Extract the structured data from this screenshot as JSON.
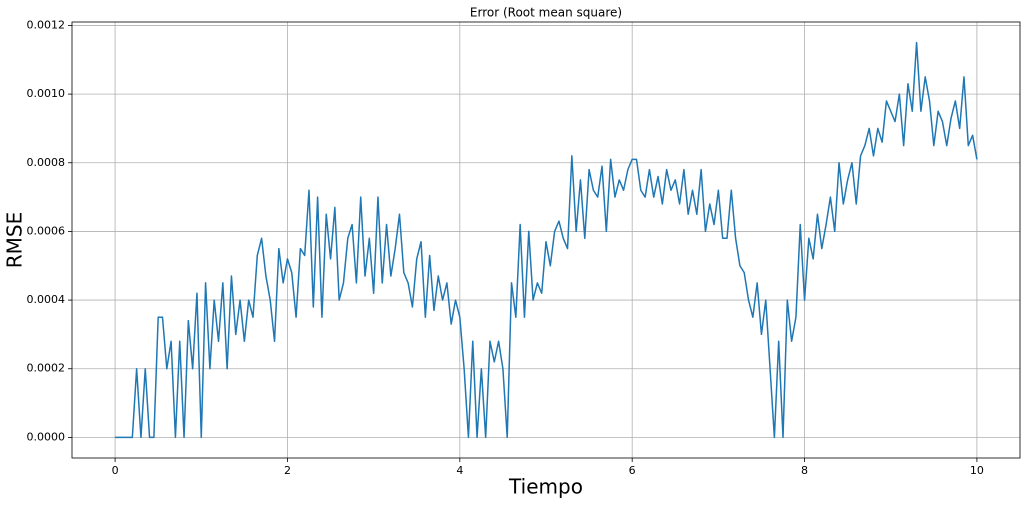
{
  "chart_data": {
    "type": "line",
    "title": "Error (Root mean square)",
    "x_label": "Tiempo",
    "y_label": "RMSE",
    "x": [
      0,
      0.05,
      0.1,
      0.15,
      0.2,
      0.25,
      0.3,
      0.35,
      0.4,
      0.45,
      0.5,
      0.55,
      0.6,
      0.65,
      0.7,
      0.75,
      0.8,
      0.85,
      0.9,
      0.95,
      1,
      1.05,
      1.1,
      1.15,
      1.2,
      1.25,
      1.3,
      1.35,
      1.4,
      1.45,
      1.5,
      1.55,
      1.6,
      1.65,
      1.7,
      1.75,
      1.8,
      1.85,
      1.9,
      1.95,
      2,
      2.05,
      2.1,
      2.15,
      2.2,
      2.25,
      2.3,
      2.35,
      2.4,
      2.45,
      2.5,
      2.55,
      2.6,
      2.65,
      2.7,
      2.75,
      2.8,
      2.85,
      2.9,
      2.95,
      3,
      3.05,
      3.1,
      3.15,
      3.2,
      3.25,
      3.3,
      3.35,
      3.4,
      3.45,
      3.5,
      3.55,
      3.6,
      3.65,
      3.7,
      3.75,
      3.8,
      3.85,
      3.9,
      3.95,
      4,
      4.05,
      4.1,
      4.15,
      4.2,
      4.25,
      4.3,
      4.35,
      4.4,
      4.45,
      4.5,
      4.55,
      4.6,
      4.65,
      4.7,
      4.75,
      4.8,
      4.85,
      4.9,
      4.95,
      5,
      5.05,
      5.1,
      5.15,
      5.2,
      5.25,
      5.3,
      5.35,
      5.4,
      5.45,
      5.5,
      5.55,
      5.6,
      5.65,
      5.7,
      5.75,
      5.8,
      5.85,
      5.9,
      5.95,
      6,
      6.05,
      6.1,
      6.15,
      6.2,
      6.25,
      6.3,
      6.35,
      6.4,
      6.45,
      6.5,
      6.55,
      6.6,
      6.65,
      6.7,
      6.75,
      6.8,
      6.85,
      6.9,
      6.95,
      7,
      7.05,
      7.1,
      7.15,
      7.2,
      7.25,
      7.3,
      7.35,
      7.4,
      7.45,
      7.5,
      7.55,
      7.6,
      7.65,
      7.7,
      7.75,
      7.8,
      7.85,
      7.9,
      7.95,
      8,
      8.05,
      8.1,
      8.15,
      8.2,
      8.25,
      8.3,
      8.35,
      8.4,
      8.45,
      8.5,
      8.55,
      8.6,
      8.65,
      8.7,
      8.75,
      8.8,
      8.85,
      8.9,
      8.95,
      9,
      9.05,
      9.1,
      9.15,
      9.2,
      9.25,
      9.3,
      9.35,
      9.4,
      9.45,
      9.5,
      9.55,
      9.6,
      9.65,
      9.7,
      9.75,
      9.8,
      9.85,
      9.9,
      9.95,
      10
    ],
    "series": [
      {
        "color": "#1f77b4",
        "values": [
          0,
          0,
          0,
          0,
          0,
          0.0002,
          0,
          0.0002,
          0,
          0,
          0.00035,
          0.00035,
          0.0002,
          0.00028,
          0,
          0.00028,
          0,
          0.00034,
          0.0002,
          0.00042,
          0,
          0.00045,
          0.0002,
          0.0004,
          0.00028,
          0.00045,
          0.0002,
          0.00047,
          0.0003,
          0.0004,
          0.00028,
          0.0004,
          0.00035,
          0.00053,
          0.00058,
          0.00047,
          0.0004,
          0.00028,
          0.00055,
          0.00045,
          0.00052,
          0.00048,
          0.00035,
          0.00055,
          0.00053,
          0.00072,
          0.00038,
          0.0007,
          0.00035,
          0.00065,
          0.00052,
          0.00067,
          0.0004,
          0.00045,
          0.00058,
          0.00062,
          0.00045,
          0.0007,
          0.00047,
          0.00058,
          0.00042,
          0.0007,
          0.00045,
          0.00062,
          0.00047,
          0.00055,
          0.00065,
          0.00048,
          0.00045,
          0.00038,
          0.00052,
          0.00057,
          0.00035,
          0.00053,
          0.00037,
          0.00047,
          0.0004,
          0.00045,
          0.00033,
          0.0004,
          0.00035,
          0.0002,
          0,
          0.00028,
          0,
          0.0002,
          0,
          0.00028,
          0.00022,
          0.00028,
          0.0002,
          0,
          0.00045,
          0.00035,
          0.00062,
          0.00035,
          0.0006,
          0.0004,
          0.00045,
          0.00042,
          0.00057,
          0.0005,
          0.0006,
          0.00063,
          0.00058,
          0.00055,
          0.00082,
          0.0006,
          0.00075,
          0.00058,
          0.00078,
          0.00072,
          0.0007,
          0.00079,
          0.0006,
          0.00081,
          0.0007,
          0.00075,
          0.00072,
          0.00078,
          0.00081,
          0.00081,
          0.00072,
          0.0007,
          0.00078,
          0.0007,
          0.00076,
          0.00068,
          0.00078,
          0.00072,
          0.00075,
          0.00068,
          0.00078,
          0.00065,
          0.00072,
          0.00065,
          0.00078,
          0.0006,
          0.00068,
          0.00062,
          0.00072,
          0.00058,
          0.00058,
          0.00072,
          0.00058,
          0.0005,
          0.00048,
          0.0004,
          0.00035,
          0.00045,
          0.0003,
          0.0004,
          0.0002,
          0,
          0.00028,
          0,
          0.0004,
          0.00028,
          0.00035,
          0.00062,
          0.0004,
          0.00058,
          0.00052,
          0.00065,
          0.00055,
          0.00062,
          0.0007,
          0.0006,
          0.0008,
          0.00068,
          0.00075,
          0.0008,
          0.00068,
          0.00082,
          0.00085,
          0.0009,
          0.00082,
          0.0009,
          0.00086,
          0.00098,
          0.00095,
          0.00092,
          0.001,
          0.00085,
          0.00103,
          0.00095,
          0.00115,
          0.00095,
          0.00105,
          0.00098,
          0.00085,
          0.00095,
          0.00092,
          0.00085,
          0.00093,
          0.00098,
          0.0009,
          0.00105,
          0.00085,
          0.00088,
          0.00081
        ]
      }
    ],
    "xlim": [
      -0.5,
      10.5
    ],
    "ylim": [
      -6e-05,
      0.00121
    ],
    "xticks": [
      0,
      2,
      4,
      6,
      8,
      10
    ],
    "yticks": [
      {
        "value": 0,
        "label": "0.0000"
      },
      {
        "value": 0.0002,
        "label": "0.0002"
      },
      {
        "value": 0.0004,
        "label": "0.0004"
      },
      {
        "value": 0.0006,
        "label": "0.0006"
      },
      {
        "value": 0.0008,
        "label": "0.0008"
      },
      {
        "value": 0.001,
        "label": "0.0010"
      },
      {
        "value": 0.0012,
        "label": "0.0012"
      }
    ],
    "grid": true
  }
}
